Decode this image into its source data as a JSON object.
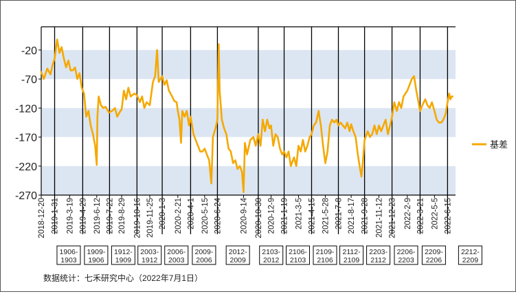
{
  "chart_data": {
    "type": "line",
    "series": [
      {
        "name": "基差",
        "color": "#F5A800",
        "points": [
          [
            "2018-12-20",
            -58
          ],
          [
            "2018-12-28",
            -70
          ],
          [
            "2019-01-08",
            -52
          ],
          [
            "2019-01-18",
            -62
          ],
          [
            "2019-01-25",
            -45
          ],
          [
            "2019-01-31",
            -35
          ],
          [
            "2019-02-08",
            -2
          ],
          [
            "2019-02-15",
            -25
          ],
          [
            "2019-02-22",
            -15
          ],
          [
            "2019-03-01",
            -35
          ],
          [
            "2019-03-08",
            -50
          ],
          [
            "2019-03-15",
            -38
          ],
          [
            "2019-03-22",
            -55
          ],
          [
            "2019-03-29",
            -55
          ],
          [
            "2019-04-05",
            -50
          ],
          [
            "2019-04-12",
            -70
          ],
          [
            "2019-04-19",
            -60
          ],
          [
            "2019-04-26",
            -85
          ],
          [
            "2019-05-03",
            -95
          ],
          [
            "2019-05-10",
            -135
          ],
          [
            "2019-05-17",
            -125
          ],
          [
            "2019-05-24",
            -150
          ],
          [
            "2019-05-31",
            -165
          ],
          [
            "2019-06-07",
            -185
          ],
          [
            "2019-06-12",
            -218
          ],
          [
            "2019-06-14",
            -135
          ],
          [
            "2019-06-18",
            -100
          ],
          [
            "2019-06-25",
            -115
          ],
          [
            "2019-07-02",
            -120
          ],
          [
            "2019-07-10",
            -118
          ],
          [
            "2019-07-20",
            -128
          ],
          [
            "2019-07-30",
            -125
          ],
          [
            "2019-08-08",
            -120
          ],
          [
            "2019-08-15",
            -135
          ],
          [
            "2019-08-22",
            -128
          ],
          [
            "2019-08-29",
            -122
          ],
          [
            "2019-09-05",
            -90
          ],
          [
            "2019-09-12",
            -105
          ],
          [
            "2019-09-19",
            -85
          ],
          [
            "2019-09-26",
            -100
          ],
          [
            "2019-10-08",
            -95
          ],
          [
            "2019-10-16",
            -98
          ],
          [
            "2019-10-25",
            -110
          ],
          [
            "2019-11-01",
            -100
          ],
          [
            "2019-11-08",
            -120
          ],
          [
            "2019-11-15",
            -110
          ],
          [
            "2019-11-25",
            -115
          ],
          [
            "2019-12-05",
            -75
          ],
          [
            "2019-12-12",
            -65
          ],
          [
            "2019-12-18",
            -20
          ],
          [
            "2019-12-23",
            -75
          ],
          [
            "2020-01-03",
            -65
          ],
          [
            "2020-01-10",
            -80
          ],
          [
            "2020-01-17",
            -72
          ],
          [
            "2020-01-24",
            -90
          ],
          [
            "2020-02-03",
            -100
          ],
          [
            "2020-02-10",
            -108
          ],
          [
            "2020-02-17",
            -110
          ],
          [
            "2020-02-21",
            -125
          ],
          [
            "2020-02-26",
            -140
          ],
          [
            "2020-03-02",
            -180
          ],
          [
            "2020-03-06",
            -125
          ],
          [
            "2020-03-13",
            -135
          ],
          [
            "2020-03-20",
            -125
          ],
          [
            "2020-03-27",
            -150
          ],
          [
            "2020-04-01",
            -135
          ],
          [
            "2020-04-10",
            -165
          ],
          [
            "2020-04-17",
            -175
          ],
          [
            "2020-04-24",
            -185
          ],
          [
            "2020-05-01",
            -195
          ],
          [
            "2020-05-08",
            -195
          ],
          [
            "2020-05-15",
            -190
          ],
          [
            "2020-05-22",
            -200
          ],
          [
            "2020-05-29",
            -210
          ],
          [
            "2020-06-05",
            -250
          ],
          [
            "2020-06-10",
            -170
          ],
          [
            "2020-06-15",
            -160
          ],
          [
            "2020-06-20",
            -150
          ],
          [
            "2020-06-24",
            -140
          ],
          [
            "2020-06-28",
            -10
          ],
          [
            "2020-07-01",
            -90
          ],
          [
            "2020-07-08",
            -140
          ],
          [
            "2020-07-15",
            -155
          ],
          [
            "2020-07-22",
            -165
          ],
          [
            "2020-07-29",
            -190
          ],
          [
            "2020-08-05",
            -195
          ],
          [
            "2020-08-12",
            -215
          ],
          [
            "2020-08-19",
            -210
          ],
          [
            "2020-08-26",
            -225
          ],
          [
            "2020-09-02",
            -220
          ],
          [
            "2020-09-09",
            -230
          ],
          [
            "2020-09-14",
            -265
          ],
          [
            "2020-09-18",
            -180
          ],
          [
            "2020-09-25",
            -200
          ],
          [
            "2020-10-05",
            -175
          ],
          [
            "2020-10-15",
            -170
          ],
          [
            "2020-10-22",
            -185
          ],
          [
            "2020-10-30",
            -165
          ],
          [
            "2020-11-06",
            -185
          ],
          [
            "2020-11-13",
            -140
          ],
          [
            "2020-11-20",
            -160
          ],
          [
            "2020-11-27",
            -140
          ],
          [
            "2020-12-04",
            -155
          ],
          [
            "2020-12-09",
            -150
          ],
          [
            "2020-12-16",
            -185
          ],
          [
            "2020-12-23",
            -165
          ],
          [
            "2020-12-30",
            -170
          ],
          [
            "2021-01-06",
            -190
          ],
          [
            "2021-01-13",
            -200
          ],
          [
            "2021-01-19",
            -195
          ],
          [
            "2021-01-26",
            -205
          ],
          [
            "2021-02-02",
            -195
          ],
          [
            "2021-02-09",
            -220
          ],
          [
            "2021-02-19",
            -205
          ],
          [
            "2021-02-26",
            -220
          ],
          [
            "2021-03-05",
            -185
          ],
          [
            "2021-03-12",
            -195
          ],
          [
            "2021-03-19",
            -175
          ],
          [
            "2021-03-26",
            -195
          ],
          [
            "2021-04-02",
            -185
          ],
          [
            "2021-04-09",
            -170
          ],
          [
            "2021-04-15",
            -165
          ],
          [
            "2021-04-22",
            -150
          ],
          [
            "2021-04-29",
            -145
          ],
          [
            "2021-05-07",
            -125
          ],
          [
            "2021-05-14",
            -150
          ],
          [
            "2021-05-21",
            -185
          ],
          [
            "2021-05-28",
            -215
          ],
          [
            "2021-06-04",
            -195
          ],
          [
            "2021-06-11",
            -150
          ],
          [
            "2021-06-18",
            -140
          ],
          [
            "2021-06-25",
            -145
          ],
          [
            "2021-07-02",
            -140
          ],
          [
            "2021-07-08",
            -150
          ],
          [
            "2021-07-15",
            -145
          ],
          [
            "2021-07-22",
            -150
          ],
          [
            "2021-07-29",
            -155
          ],
          [
            "2021-08-05",
            -145
          ],
          [
            "2021-08-12",
            -160
          ],
          [
            "2021-08-17",
            -148
          ],
          [
            "2021-08-24",
            -160
          ],
          [
            "2021-08-31",
            -170
          ],
          [
            "2021-09-07",
            -200
          ],
          [
            "2021-09-14",
            -225
          ],
          [
            "2021-09-18",
            -238
          ],
          [
            "2021-09-22",
            -218
          ],
          [
            "2021-09-28",
            -175
          ],
          [
            "2021-10-08",
            -160
          ],
          [
            "2021-10-15",
            -170
          ],
          [
            "2021-10-22",
            -165
          ],
          [
            "2021-10-29",
            -150
          ],
          [
            "2021-11-05",
            -165
          ],
          [
            "2021-11-12",
            -150
          ],
          [
            "2021-11-19",
            -160
          ],
          [
            "2021-11-26",
            -150
          ],
          [
            "2021-12-03",
            -140
          ],
          [
            "2021-12-10",
            -165
          ],
          [
            "2021-12-17",
            -150
          ],
          [
            "2021-12-23",
            -135
          ],
          [
            "2021-12-30",
            -110
          ],
          [
            "2022-01-07",
            -125
          ],
          [
            "2022-01-14",
            -110
          ],
          [
            "2022-01-21",
            -120
          ],
          [
            "2022-01-28",
            -100
          ],
          [
            "2022-02-09",
            -90
          ],
          [
            "2022-02-16",
            -80
          ],
          [
            "2022-02-23",
            -70
          ],
          [
            "2022-03-02",
            -65
          ],
          [
            "2022-03-09",
            -90
          ],
          [
            "2022-03-16",
            -110
          ],
          [
            "2022-03-21",
            -125
          ],
          [
            "2022-03-28",
            -115
          ],
          [
            "2022-04-06",
            -105
          ],
          [
            "2022-04-13",
            -115
          ],
          [
            "2022-04-20",
            -120
          ],
          [
            "2022-04-27",
            -110
          ],
          [
            "2022-05-05",
            -125
          ],
          [
            "2022-05-12",
            -140
          ],
          [
            "2022-05-19",
            -145
          ],
          [
            "2022-05-26",
            -145
          ],
          [
            "2022-06-02",
            -140
          ],
          [
            "2022-06-09",
            -130
          ],
          [
            "2022-06-15",
            -110
          ],
          [
            "2022-06-20",
            -95
          ],
          [
            "2022-06-24",
            -105
          ],
          [
            "2022-06-28",
            -100
          ],
          [
            "2022-07-01",
            -100
          ]
        ]
      }
    ],
    "title": "",
    "xlabel": "",
    "ylabel": "",
    "ylim": [
      -270,
      20
    ],
    "yticks": [
      -20,
      -70,
      -120,
      -170,
      -220,
      -270
    ],
    "ytick_labels": [
      "-20",
      "-70",
      "-120",
      "-170",
      "-220",
      "-270"
    ],
    "xlim": [
      "2018-12-20",
      "2022-07-10"
    ],
    "xticks": [
      "2018-12-20",
      "2019-1-31",
      "2019-3-19",
      "2019-4-29",
      "2019-6-12",
      "2019-7-22",
      "2019-8-29",
      "2019-10-16",
      "2019-11-25",
      "2020-1-3",
      "2020-2-21",
      "2020-4-1",
      "2020-5-15",
      "2020-6-24",
      "2020-9-14",
      "2020-10-30",
      "2020-12-9",
      "2021-1-19",
      "2021-3-5",
      "2021-4-15",
      "2021-5-28",
      "2021-7-8",
      "2021-8-17",
      "2021-9-28",
      "2021-11-12",
      "2021-12-23",
      "2022-2-9",
      "2022-3-21",
      "2022-5-5",
      "2022-6-15"
    ],
    "contract_markers": [
      "2019-1-31",
      "2019-4-29",
      "2019-7-22",
      "2019-10-16",
      "2020-1-3",
      "2020-4-1",
      "2020-6-24",
      "2020-10-30",
      "2021-1-19",
      "2021-4-15",
      "2021-7-8",
      "2021-9-28",
      "2021-12-23",
      "2022-3-21",
      "2022-6-15"
    ],
    "contract_labels": [
      "1906-1903",
      "1909-1906",
      "1912-1909",
      "2003-1912",
      "2006-2003",
      "2009-2006",
      "2012-2009",
      "2103-2012",
      "2106-2103",
      "2109-2106",
      "2112-2109",
      "2203-2112",
      "2206-2203",
      "2209-2206",
      "2212-2209"
    ],
    "band_color": "#DCE6F2",
    "grid": false,
    "legend_position": "right"
  },
  "source_note": "数据统计：七禾研究中心（2022年7月1日）"
}
